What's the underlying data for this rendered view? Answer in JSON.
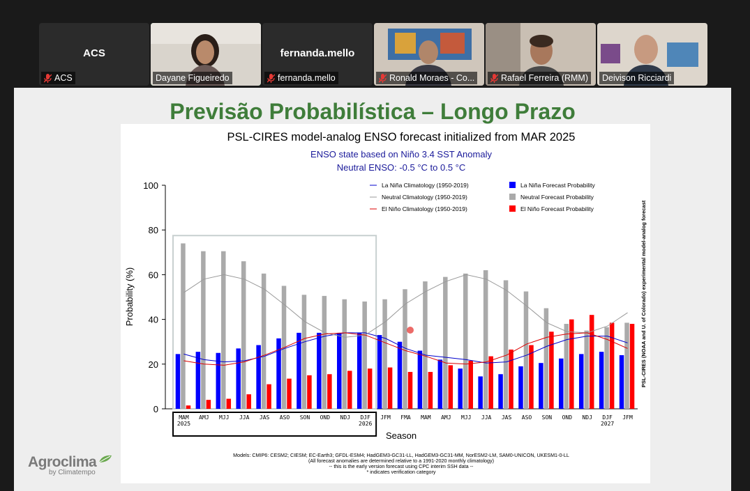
{
  "participants": [
    {
      "name": "ACS",
      "display": "ACS",
      "muted": true,
      "video": false
    },
    {
      "name": "Dayane Figueiredo",
      "muted": false,
      "video": true,
      "active": true
    },
    {
      "name": "fernanda.mello",
      "display": "fernanda.mello",
      "muted": true,
      "video": false
    },
    {
      "name": "Ronald Moraes - Co...",
      "muted": true,
      "video": true
    },
    {
      "name": "Rafael Ferreira (RMM)",
      "muted": true,
      "video": true
    },
    {
      "name": "Deivison Ricciardi",
      "muted": false,
      "video": true
    }
  ],
  "slide": {
    "title": "Previsão Probabilística – Longo Prazo",
    "logo_brand": "Agroclima",
    "logo_by": "by Climatempo"
  },
  "colors": {
    "accent_green": "#3f7d3a",
    "la_nina": "#0000ff",
    "neutral": "#aaaaaa",
    "el_nino": "#ff0000"
  },
  "chart_data": {
    "type": "bar",
    "title": "PSL-CIRES model-analog ENSO forecast initialized from MAR 2025",
    "subtitle1": "ENSO state based on Niño 3.4 SST Anomaly",
    "subtitle2": "Neutral ENSO: -0.5 °C to 0.5 °C",
    "xlabel": "Season",
    "ylabel": "Probability (%)",
    "right_label": "PSL-CIRES (NOAA and U. of Colorado) experimental model-analog forecast",
    "ylim": [
      0,
      100
    ],
    "yticks": [
      0,
      20,
      40,
      60,
      80,
      100
    ],
    "categories": [
      "MAM",
      "AMJ",
      "MJJ",
      "JJA",
      "JAS",
      "ASO",
      "SON",
      "OND",
      "NDJ",
      "DJF",
      "JFM",
      "FMA",
      "MAM",
      "AMJ",
      "MJJ",
      "JJA",
      "JAS",
      "ASO",
      "SON",
      "OND",
      "NDJ",
      "DJF",
      "JFM"
    ],
    "year_labels": {
      "0": "2025",
      "9": "2026",
      "21": "2027"
    },
    "series": [
      {
        "name": "La Niña Forecast Probability",
        "values": [
          24.5,
          25.5,
          25,
          27,
          28.5,
          31.5,
          34,
          34,
          34,
          34,
          33,
          30,
          26,
          22,
          18,
          14.5,
          15.5,
          19,
          20.5,
          22.5,
          24.5,
          25.5,
          24
        ]
      },
      {
        "name": "Neutral Forecast Probability",
        "values": [
          74,
          70.5,
          70.5,
          66,
          60.5,
          55,
          51,
          50.5,
          49,
          48,
          49,
          53.5,
          57,
          59,
          60.5,
          62,
          57.5,
          52.5,
          45,
          38,
          35,
          36.5,
          38.5
        ]
      },
      {
        "name": "El Niño Forecast Probability",
        "values": [
          1.5,
          4,
          4.5,
          6.5,
          11,
          13.5,
          15,
          15.5,
          17,
          18,
          18.5,
          16.5,
          16.5,
          19.5,
          21.5,
          23.5,
          26.5,
          28.5,
          34.5,
          40,
          42,
          38.5,
          38
        ]
      }
    ],
    "climatology": [
      {
        "name": "La Niña Climatology (1950-2019)",
        "values": [
          24.5,
          22,
          21,
          21.5,
          23.5,
          27,
          30,
          32.5,
          34,
          34,
          31.5,
          27,
          24,
          23,
          22,
          20.5,
          21,
          24,
          28,
          31,
          32.5,
          32.5,
          29.5
        ]
      },
      {
        "name": "Neutral Climatology (1950-2019)",
        "values": [
          52,
          58,
          60,
          58,
          53.5,
          46.5,
          39,
          34,
          32,
          33,
          39,
          47,
          52.5,
          57,
          60,
          58,
          53,
          46,
          38.5,
          34.5,
          34,
          37,
          43
        ]
      },
      {
        "name": "El Niño Climatology (1950-2019)",
        "values": [
          21.5,
          20,
          19.5,
          21,
          24,
          27.5,
          31.5,
          33.5,
          34,
          33,
          29.5,
          26,
          23.5,
          20.5,
          20,
          21,
          24,
          29,
          32,
          33.5,
          34,
          31,
          27
        ]
      }
    ],
    "footer": [
      "Models: CMIP6: CESM2; CIESM; EC-Earth3; GFDL-ESM4; HadGEM3-GC31-LL, HadGEM3-GC31-MM, NorESM2-LM, SAM0-UNICON, UKESM1-0-LL",
      "(All forecast anomalies are determined relative to a 1991-2020 monthly climatology)",
      "-- this is the early version forecast using CPC interim SSH data --",
      "* indicates verification category"
    ],
    "highlight_seasons": [
      0,
      9
    ],
    "legend_position": "top"
  }
}
